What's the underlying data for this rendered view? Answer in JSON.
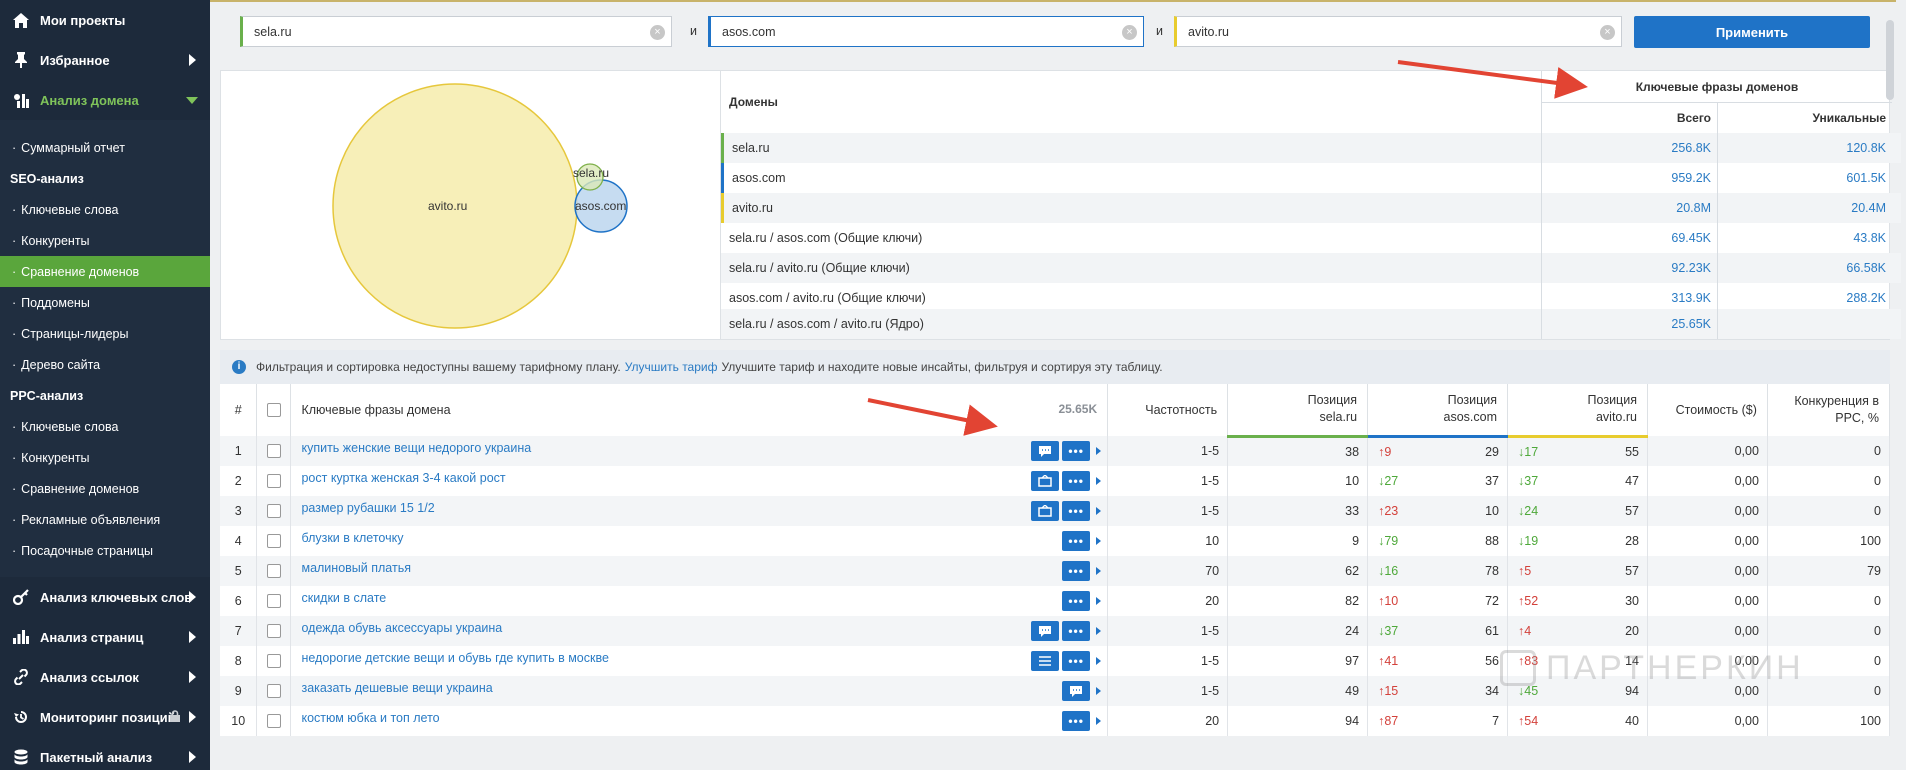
{
  "sidebar": {
    "my_projects": "Мои проекты",
    "favorites": "Избранное",
    "domain_analysis": "Анализ домена",
    "summary": "Суммарный отчет",
    "seo_head": "SEO-анализ",
    "seo_items": [
      "Ключевые слова",
      "Конкуренты",
      "Сравнение доменов",
      "Поддомены",
      "Страницы-лидеры",
      "Дерево сайта"
    ],
    "ppc_head": "PPC-анализ",
    "ppc_items": [
      "Ключевые слова",
      "Конкуренты",
      "Сравнение доменов",
      "Рекламные объявления",
      "Посадочные страницы"
    ],
    "keyword_analysis": "Анализ ключевых слов",
    "page_analysis": "Анализ страниц",
    "link_analysis": "Анализ ссылок",
    "position_monitoring": "Мониторинг позиций",
    "batch_analysis": "Пакетный анализ"
  },
  "domains_form": {
    "domain1": "sela.ru",
    "domain2": "asos.com",
    "domain3": "avito.ru",
    "and_label": "и",
    "apply": "Применить"
  },
  "colors": {
    "domain1": "#6ab04c",
    "domain2": "#1f73c7",
    "domain3": "#e8cc2e",
    "accent": "#1f73c7"
  },
  "venn": {
    "labels": [
      "sela.ru",
      "asos.com",
      "avito.ru"
    ]
  },
  "summary_table": {
    "domains_header": "Домены",
    "kw_header": "Ключевые фразы доменов",
    "total_header": "Всего",
    "unique_header": "Уникальные",
    "rows": [
      {
        "domain": "sela.ru",
        "total": "256.8K",
        "unique": "120.8K"
      },
      {
        "domain": "asos.com",
        "total": "959.2K",
        "unique": "601.5K"
      },
      {
        "domain": "avito.ru",
        "total": "20.8M",
        "unique": "20.4M"
      },
      {
        "domain": "sela.ru / asos.com (Общие ключи)",
        "total": "69.45K",
        "unique": "43.8K"
      },
      {
        "domain": "sela.ru / avito.ru (Общие ключи)",
        "total": "92.23K",
        "unique": "66.58K"
      },
      {
        "domain": "asos.com / avito.ru (Общие ключи)",
        "total": "313.9K",
        "unique": "288.2K"
      },
      {
        "domain": "sela.ru / asos.com / avito.ru (Ядро)",
        "total": "25.65K",
        "unique": ""
      }
    ]
  },
  "notice": {
    "text1": "Фильтрация и сортировка недоступны вашему тарифному плану.",
    "link": "Улучшить тариф",
    "text2": "Улучшите тариф и находите новые инсайты, фильтруя и сортируя эту таблицу."
  },
  "kw_table": {
    "headers": {
      "num": "#",
      "keyword": "Ключевые фразы домена",
      "count": "25.65K",
      "freq": "Частотность",
      "pos1_a": "Позиция",
      "pos1_b": "sela.ru",
      "pos2_a": "Позиция",
      "pos2_b": "asos.com",
      "pos3_a": "Позиция",
      "pos3_b": "avito.ru",
      "cost": "Стоимость ($)",
      "comp_a": "Конкуренция в",
      "comp_b": "PPC, %"
    },
    "rows": [
      {
        "n": "1",
        "kw": "купить женские вещи недорого украина",
        "freq": "1-5",
        "p1": "38",
        "d2": "↑9",
        "p2": "29",
        "d3": "↓17",
        "p3": "55",
        "cost": "0,00",
        "comp": "0"
      },
      {
        "n": "2",
        "kw": "рост куртка женская 3-4 какой рост",
        "freq": "1-5",
        "p1": "10",
        "d2": "↓27",
        "p2": "37",
        "d3": "↓37",
        "p3": "47",
        "cost": "0,00",
        "comp": "0"
      },
      {
        "n": "3",
        "kw": "размер рубашки 15 1/2",
        "freq": "1-5",
        "p1": "33",
        "d2": "↑23",
        "p2": "10",
        "d3": "↓24",
        "p3": "57",
        "cost": "0,00",
        "comp": "0"
      },
      {
        "n": "4",
        "kw": "блузки в клеточку",
        "freq": "10",
        "p1": "9",
        "d2": "↓79",
        "p2": "88",
        "d3": "↓19",
        "p3": "28",
        "cost": "0,00",
        "comp": "100"
      },
      {
        "n": "5",
        "kw": "малиновый платья",
        "freq": "70",
        "p1": "62",
        "d2": "↓16",
        "p2": "78",
        "d3": "↑5",
        "p3": "57",
        "cost": "0,00",
        "comp": "79"
      },
      {
        "n": "6",
        "kw": "скидки в слате",
        "freq": "20",
        "p1": "82",
        "d2": "↑10",
        "p2": "72",
        "d3": "↑52",
        "p3": "30",
        "cost": "0,00",
        "comp": "0"
      },
      {
        "n": "7",
        "kw": "одежда обувь аксессуары украина",
        "freq": "1-5",
        "p1": "24",
        "d2": "↓37",
        "p2": "61",
        "d3": "↑4",
        "p3": "20",
        "cost": "0,00",
        "comp": "0"
      },
      {
        "n": "8",
        "kw": "недорогие детские вещи и обувь где купить в москве",
        "freq": "1-5",
        "p1": "97",
        "d2": "↑41",
        "p2": "56",
        "d3": "↑83",
        "p3": "14",
        "cost": "0,00",
        "comp": "0"
      },
      {
        "n": "9",
        "kw": "заказать дешевые вещи украина",
        "freq": "1-5",
        "p1": "49",
        "d2": "↑15",
        "p2": "34",
        "d3": "↓45",
        "p3": "94",
        "cost": "0,00",
        "comp": "0"
      },
      {
        "n": "10",
        "kw": "костюм юбка и топ лето",
        "freq": "20",
        "p1": "94",
        "d2": "↑87",
        "p2": "7",
        "d3": "↑54",
        "p3": "40",
        "cost": "0,00",
        "comp": "100"
      }
    ],
    "row_buttons": [
      [
        "chat",
        "more"
      ],
      [
        "ad",
        "more"
      ],
      [
        "ad",
        "more"
      ],
      [
        "more"
      ],
      [
        "more"
      ],
      [
        "more"
      ],
      [
        "chat",
        "more"
      ],
      [
        "list",
        "more"
      ],
      [
        "chat"
      ],
      [
        "more"
      ]
    ]
  },
  "watermark": "ПАРТНЕРКИН",
  "icons": [
    "home-icon",
    "pin-icon",
    "domain-analysis-icon",
    "key-icon",
    "bar-chart-icon",
    "link-icon",
    "history-icon",
    "lock-icon",
    "database-icon",
    "info-icon",
    "clear-icon"
  ]
}
